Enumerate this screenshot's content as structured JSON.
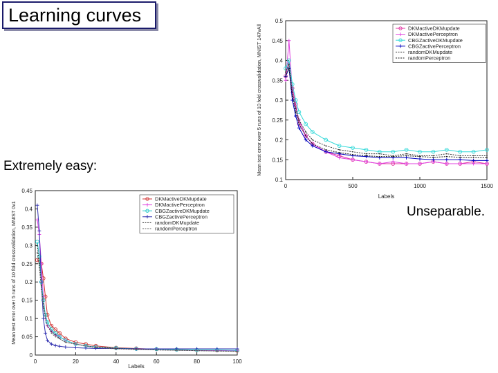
{
  "slide": {
    "title": "Learning curves",
    "caption_left": "Extremely easy:",
    "caption_right": "Unseparable."
  },
  "chart_data": [
    {
      "type": "line",
      "dataset": "MNIST 0v1",
      "xlabel": "Labels",
      "ylabel": "Mean test error over 5 runs of 10 fold crossvalidation, MNIST 0v1",
      "xlim": [
        0,
        100
      ],
      "ylim": [
        0,
        0.45
      ],
      "xticks": [
        "0",
        "20",
        "40",
        "60",
        "80",
        "100"
      ],
      "yticks": [
        "0",
        "0.05",
        "0.1",
        "0.15",
        "0.2",
        "0.25",
        "0.3",
        "0.35",
        "0.4",
        "0.45"
      ],
      "legend_position": "top-right",
      "x": [
        1,
        2,
        3,
        4,
        5,
        6,
        8,
        10,
        12,
        15,
        20,
        25,
        30,
        40,
        50,
        60,
        70,
        80,
        90,
        100
      ],
      "series": [
        {
          "name": "DKMactiveDKMupdate",
          "color": "#d03030",
          "marker": "o",
          "values": [
            0.26,
            0.26,
            0.25,
            0.21,
            0.16,
            0.11,
            0.08,
            0.07,
            0.06,
            0.045,
            0.035,
            0.03,
            0.025,
            0.02,
            0.018,
            0.016,
            0.015,
            0.014,
            0.013,
            0.012
          ]
        },
        {
          "name": "DKMactivePerceptron",
          "color": "#e040e0",
          "marker": "+",
          "values": [
            0.37,
            0.33,
            0.25,
            0.16,
            0.1,
            0.08,
            0.065,
            0.055,
            0.05,
            0.04,
            0.03,
            0.025,
            0.022,
            0.018,
            0.016,
            0.015,
            0.014,
            0.013,
            0.012,
            0.012
          ]
        },
        {
          "name": "CBGZactiveDKMupdate",
          "color": "#20c8c8",
          "marker": "o",
          "values": [
            0.31,
            0.27,
            0.2,
            0.15,
            0.11,
            0.09,
            0.07,
            0.06,
            0.05,
            0.04,
            0.03,
            0.025,
            0.022,
            0.019,
            0.017,
            0.016,
            0.015,
            0.014,
            0.014,
            0.013
          ]
        },
        {
          "name": "CBGZactivePerceptron",
          "color": "#3030b0",
          "marker": "+",
          "values": [
            0.41,
            0.34,
            0.2,
            0.1,
            0.06,
            0.04,
            0.03,
            0.026,
            0.024,
            0.022,
            0.02,
            0.019,
            0.018,
            0.018,
            0.017,
            0.017,
            0.017,
            0.017,
            0.017,
            0.017
          ]
        },
        {
          "name": "randomDKMupdate",
          "color": "#333333",
          "marker": "",
          "values": [
            0.3,
            0.25,
            0.19,
            0.14,
            0.1,
            0.08,
            0.065,
            0.055,
            0.045,
            0.035,
            0.03,
            0.025,
            0.022,
            0.018,
            0.016,
            0.014,
            0.013,
            0.012,
            0.011,
            0.01
          ]
        },
        {
          "name": "randomPerceptron",
          "color": "#666666",
          "marker": "",
          "values": [
            0.28,
            0.24,
            0.18,
            0.13,
            0.1,
            0.08,
            0.06,
            0.05,
            0.045,
            0.035,
            0.03,
            0.025,
            0.02,
            0.017,
            0.015,
            0.014,
            0.013,
            0.012,
            0.011,
            0.01
          ]
        }
      ]
    },
    {
      "type": "line",
      "dataset": "MNIST 147vAll",
      "xlabel": "Labels",
      "ylabel": "Mean test error over 5 runs of 10 fold crossvalidation, MNIST 147vAll",
      "xlim": [
        0,
        1500
      ],
      "ylim": [
        0.1,
        0.5
      ],
      "xticks": [
        "0",
        "500",
        "1000",
        "1500"
      ],
      "yticks": [
        "0.1",
        "0.15",
        "0.2",
        "0.25",
        "0.3",
        "0.35",
        "0.4",
        "0.45",
        "0.5"
      ],
      "legend_position": "top-right",
      "x": [
        0,
        25,
        50,
        75,
        100,
        150,
        200,
        300,
        400,
        500,
        600,
        700,
        800,
        900,
        1000,
        1100,
        1200,
        1300,
        1400,
        1500
      ],
      "series": [
        {
          "name": "DKMactiveDKMupdate",
          "color": "#e030a0",
          "marker": "o",
          "values": [
            0.36,
            0.4,
            0.33,
            0.29,
            0.24,
            0.21,
            0.19,
            0.17,
            0.16,
            0.15,
            0.145,
            0.14,
            0.14,
            0.14,
            0.14,
            0.145,
            0.14,
            0.14,
            0.145,
            0.14
          ]
        },
        {
          "name": "DKMactivePerceptron",
          "color": "#e040e0",
          "marker": "+",
          "values": [
            0.35,
            0.45,
            0.32,
            0.28,
            0.25,
            0.21,
            0.19,
            0.17,
            0.155,
            0.15,
            0.145,
            0.14,
            0.145,
            0.14,
            0.14,
            0.145,
            0.14,
            0.14,
            0.14,
            0.14
          ]
        },
        {
          "name": "CBGZactiveDKMupdate",
          "color": "#30d8d8",
          "marker": "o",
          "values": [
            0.38,
            0.4,
            0.34,
            0.3,
            0.27,
            0.24,
            0.22,
            0.2,
            0.185,
            0.18,
            0.175,
            0.17,
            0.17,
            0.175,
            0.17,
            0.17,
            0.175,
            0.17,
            0.17,
            0.175
          ]
        },
        {
          "name": "CBGZactivePerceptron",
          "color": "#0000c0",
          "marker": "+",
          "values": [
            0.36,
            0.38,
            0.3,
            0.26,
            0.23,
            0.2,
            0.185,
            0.17,
            0.165,
            0.16,
            0.158,
            0.155,
            0.155,
            0.155,
            0.152,
            0.15,
            0.15,
            0.15,
            0.148,
            0.148
          ]
        },
        {
          "name": "randomDKMupdate",
          "color": "#333333",
          "marker": "",
          "values": [
            0.37,
            0.39,
            0.32,
            0.28,
            0.25,
            0.22,
            0.2,
            0.185,
            0.175,
            0.17,
            0.165,
            0.165,
            0.16,
            0.165,
            0.16,
            0.16,
            0.165,
            0.16,
            0.16,
            0.16
          ]
        },
        {
          "name": "randomPerceptron",
          "color": "#111111",
          "marker": "",
          "values": [
            0.36,
            0.38,
            0.31,
            0.27,
            0.24,
            0.21,
            0.19,
            0.175,
            0.168,
            0.163,
            0.16,
            0.158,
            0.158,
            0.16,
            0.158,
            0.156,
            0.158,
            0.156,
            0.155,
            0.155
          ]
        }
      ]
    }
  ]
}
